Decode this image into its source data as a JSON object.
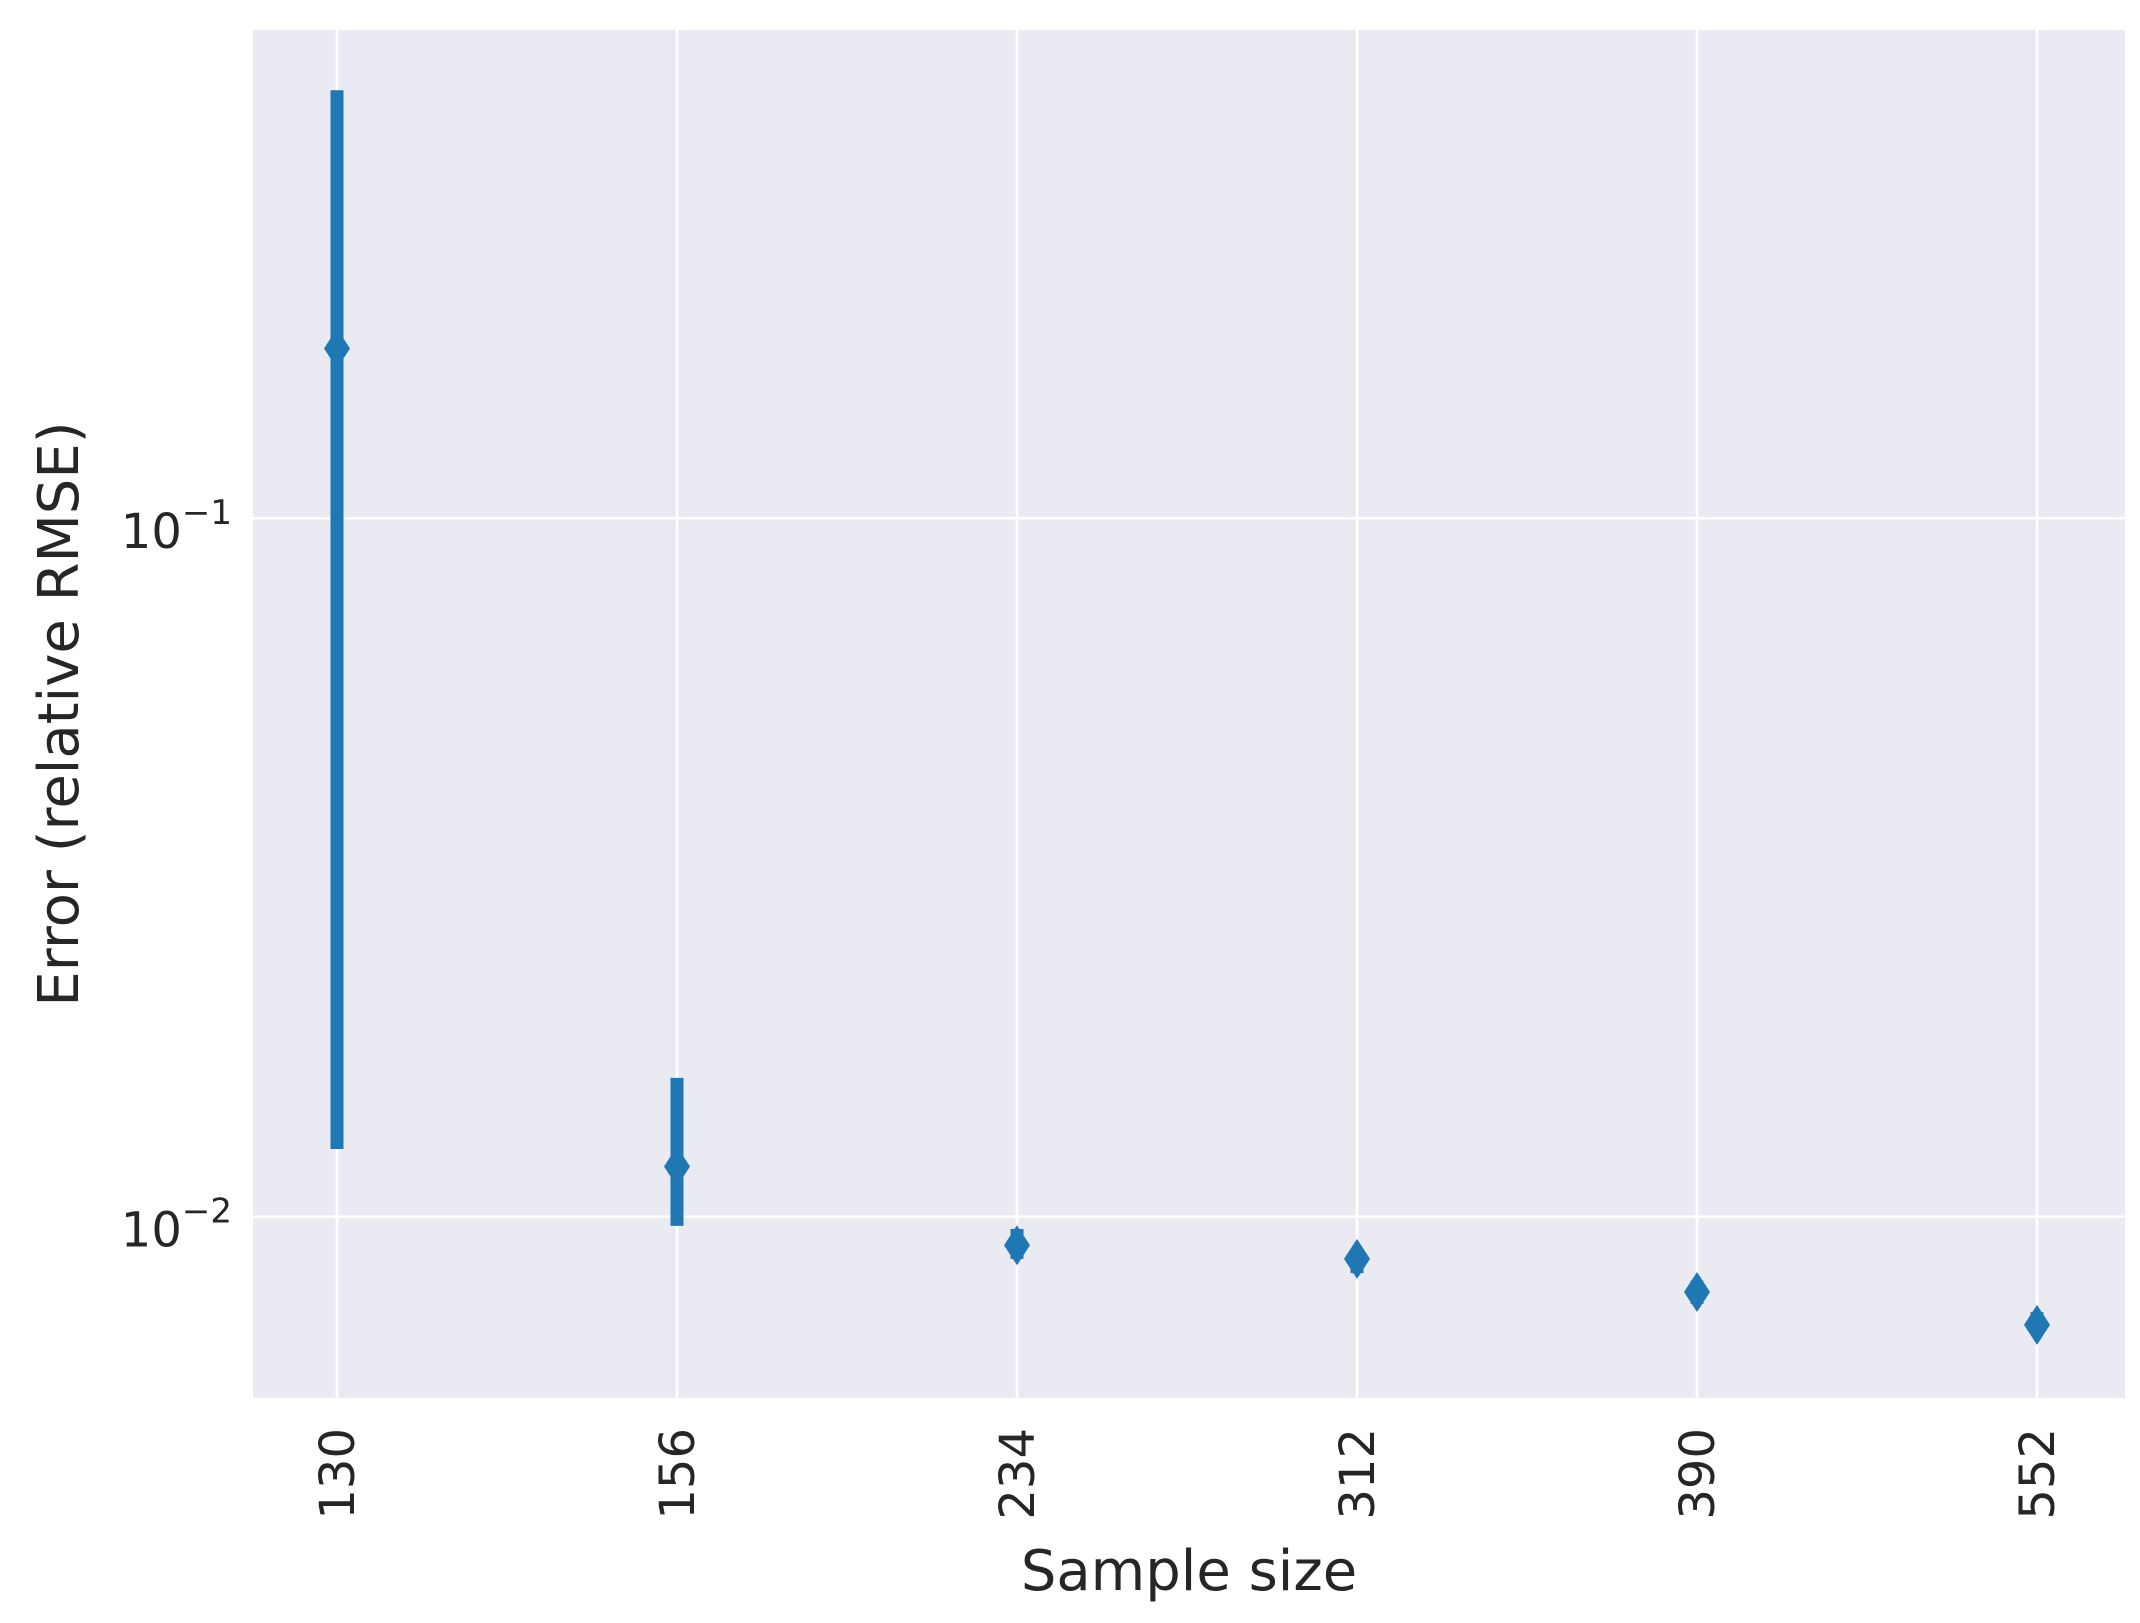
{
  "chart_data": {
    "type": "scatter",
    "subtype": "errorbar",
    "title": "",
    "xlabel": "Sample size",
    "ylabel": "Error (relative RMSE)",
    "x_scale": "categorical",
    "y_scale": "log",
    "ylim": [
      0.0055,
      0.5
    ],
    "grid": true,
    "legend": "none",
    "colors": {
      "background": "#eaeaf2",
      "grid": "#ffffff",
      "series": "#1f77b4",
      "text": "#262626"
    },
    "categories": [
      "130",
      "156",
      "234",
      "312",
      "390",
      "552"
    ],
    "y_ticks": [
      {
        "value": 0.1,
        "base": "10",
        "exponent": "−1"
      },
      {
        "value": 0.01,
        "base": "10",
        "exponent": "−2"
      }
    ],
    "series": [
      {
        "marker": "diamond",
        "values": [
          0.175,
          0.0118,
          0.0091,
          0.0087,
          0.0078,
          0.007
        ],
        "lower": [
          0.0125,
          0.0097,
          0.0087,
          0.0083,
          0.0075,
          0.0068
        ],
        "upper": [
          0.41,
          0.0158,
          0.0096,
          0.009,
          0.0081,
          0.0073
        ]
      }
    ]
  }
}
